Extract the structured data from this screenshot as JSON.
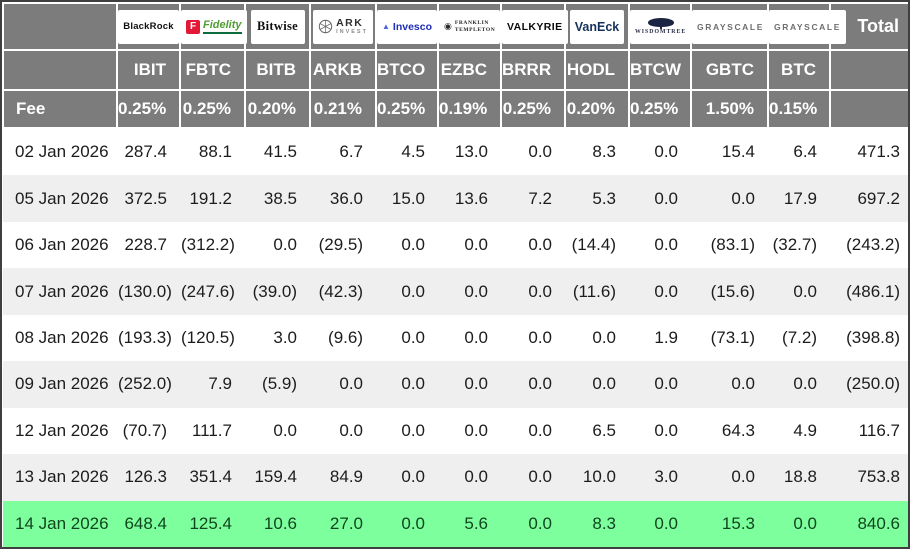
{
  "chart_data": {
    "type": "table",
    "fee_label": "Fee",
    "total_label": "Total",
    "icons": {
      "fidelity": "f-square-icon",
      "ark": "globe-icon",
      "invesco": "mountain-triangle-icon",
      "franklin": "seal-icon",
      "wisdomtree": "tree-icon"
    },
    "funds": [
      {
        "provider": "BlackRock",
        "logo": "blackrock-logo",
        "logo_parts": [
          "BlackRock"
        ],
        "ticker": "IBIT",
        "fee": "0.25%"
      },
      {
        "provider": "Fidelity",
        "logo": "fidelity-logo",
        "logo_parts": [
          "F",
          "Fidelity"
        ],
        "ticker": "FBTC",
        "fee": "0.25%"
      },
      {
        "provider": "Bitwise",
        "logo": "bitwise-logo",
        "logo_parts": [
          "Bitwise"
        ],
        "ticker": "BITB",
        "fee": "0.20%"
      },
      {
        "provider": "ARK Invest",
        "logo": "ark-logo",
        "logo_parts": [
          "ARK",
          "INVEST"
        ],
        "ticker": "ARKB",
        "fee": "0.21%"
      },
      {
        "provider": "Invesco",
        "logo": "invesco-logo",
        "logo_parts": [
          "Invesco"
        ],
        "ticker": "BTCO",
        "fee": "0.25%"
      },
      {
        "provider": "Franklin Templeton",
        "logo": "franklin-logo",
        "logo_parts": [
          "FRANKLIN",
          "TEMPLETON"
        ],
        "ticker": "EZBC",
        "fee": "0.19%"
      },
      {
        "provider": "Valkyrie",
        "logo": "valkyrie-logo",
        "logo_parts": [
          "VALKYRIE"
        ],
        "ticker": "BRRR",
        "fee": "0.25%"
      },
      {
        "provider": "VanEck",
        "logo": "vaneck-logo",
        "logo_parts": [
          "VanEck"
        ],
        "ticker": "HODL",
        "fee": "0.20%"
      },
      {
        "provider": "WisdomTree",
        "logo": "wisdomtree-logo",
        "logo_parts": [
          "WISDOMTREE"
        ],
        "ticker": "BTCW",
        "fee": "0.25%"
      },
      {
        "provider": "Grayscale",
        "logo": "grayscale-logo",
        "logo_parts": [
          "GRAYSCALE"
        ],
        "ticker": "GBTC",
        "fee": "1.50%"
      },
      {
        "provider": "Grayscale",
        "logo": "grayscale-logo",
        "logo_parts": [
          "GRAYSCALE"
        ],
        "ticker": "BTC",
        "fee": "0.15%"
      }
    ],
    "rows": [
      {
        "date": "02 Jan 2026",
        "flows": [
          287.4,
          88.1,
          41.5,
          6.7,
          4.5,
          13.0,
          0.0,
          8.3,
          0.0,
          15.4,
          6.4
        ],
        "total": 471.3
      },
      {
        "date": "05 Jan 2026",
        "flows": [
          372.5,
          191.2,
          38.5,
          36.0,
          15.0,
          13.6,
          7.2,
          5.3,
          0.0,
          0.0,
          17.9
        ],
        "total": 697.2
      },
      {
        "date": "06 Jan 2026",
        "flows": [
          228.7,
          -312.2,
          0.0,
          -29.5,
          0.0,
          0.0,
          0.0,
          -14.4,
          0.0,
          -83.1,
          -32.7
        ],
        "total": -243.2
      },
      {
        "date": "07 Jan 2026",
        "flows": [
          -130.0,
          -247.6,
          -39.0,
          -42.3,
          0.0,
          0.0,
          0.0,
          -11.6,
          0.0,
          -15.6,
          0.0
        ],
        "total": -486.1
      },
      {
        "date": "08 Jan 2026",
        "flows": [
          -193.3,
          -120.5,
          3.0,
          -9.6,
          0.0,
          0.0,
          0.0,
          0.0,
          1.9,
          -73.1,
          -7.2
        ],
        "total": -398.8
      },
      {
        "date": "09 Jan 2026",
        "flows": [
          -252.0,
          7.9,
          -5.9,
          0.0,
          0.0,
          0.0,
          0.0,
          0.0,
          0.0,
          0.0,
          0.0
        ],
        "total": -250.0
      },
      {
        "date": "12 Jan 2026",
        "flows": [
          -70.7,
          111.7,
          0.0,
          0.0,
          0.0,
          0.0,
          0.0,
          6.5,
          0.0,
          64.3,
          4.9
        ],
        "total": 116.7
      },
      {
        "date": "13 Jan 2026",
        "flows": [
          126.3,
          351.4,
          159.4,
          84.9,
          0.0,
          0.0,
          0.0,
          10.0,
          3.0,
          0.0,
          18.8
        ],
        "total": 753.8
      },
      {
        "date": "14 Jan 2026",
        "flows": [
          648.4,
          125.4,
          10.6,
          27.0,
          0.0,
          5.6,
          0.0,
          8.3,
          0.0,
          15.3,
          0.0
        ],
        "total": 840.6,
        "highlight": true
      }
    ]
  },
  "colors": {
    "header_gray": "#7c7c7c",
    "row_alt_gray": "#efefef",
    "highlight_green": "#7dff9d",
    "negative_red": "#c8293a",
    "header_text": "#ffffff"
  },
  "negative_format": "parentheses"
}
